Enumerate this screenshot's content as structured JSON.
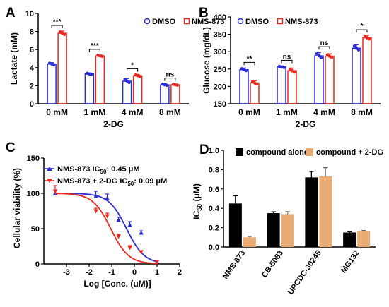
{
  "chart_data": [
    {
      "panel": "A",
      "type": "bar",
      "ylabel": "Lactate (mM)",
      "xlabel": "2-DG",
      "categories": [
        "0 mM",
        "1 mM",
        "4 mM",
        "8 mM"
      ],
      "ylim": [
        0,
        10
      ],
      "yticks": [
        0,
        2,
        4,
        6,
        8,
        10
      ],
      "series": [
        {
          "name": "DMSO",
          "color": "#2b2bd6",
          "values": [
            4.4,
            3.3,
            2.5,
            2.1
          ],
          "errors": [
            0.15,
            0.12,
            0.3,
            0.12
          ]
        },
        {
          "name": "NMS-873",
          "color": "#e8281e",
          "values": [
            7.8,
            5.3,
            3.1,
            2.1
          ],
          "errors": [
            0.25,
            0.1,
            0.15,
            0.08
          ]
        }
      ],
      "significance": [
        "***",
        "***",
        "*",
        "ns"
      ],
      "legend": "top-right"
    },
    {
      "panel": "B",
      "type": "bar",
      "ylabel": "Glucose (mg/dL)",
      "xlabel": "2-DG",
      "categories": [
        "0 mM",
        "1 mM",
        "4 mM",
        "8 mM"
      ],
      "ylim": [
        150,
        400
      ],
      "yticks": [
        150,
        200,
        250,
        300,
        350,
        400
      ],
      "series": [
        {
          "name": "DMSO",
          "color": "#2b2bd6",
          "values": [
            248,
            256,
            288,
            310
          ],
          "errors": [
            5,
            3,
            10,
            10
          ]
        },
        {
          "name": "NMS-873",
          "color": "#e8281e",
          "values": [
            210,
            245,
            287,
            340
          ],
          "errors": [
            6,
            8,
            7,
            7
          ]
        }
      ],
      "significance": [
        "**",
        "ns",
        "ns",
        "*"
      ],
      "legend": "top-left"
    },
    {
      "panel": "C",
      "type": "scatter",
      "ylabel": "Cellular viability (%)",
      "xlabel": "Log [Conc. (uM)]",
      "xlim": [
        -4,
        2
      ],
      "xticks": [
        -3,
        -2,
        -1,
        0,
        1,
        2
      ],
      "ylim": [
        0,
        150
      ],
      "yticks": [
        0,
        50,
        100,
        150
      ],
      "series": [
        {
          "name": "NMS-873",
          "ic50_prefix": "IC",
          "ic50_sub": "50",
          "ic50_value": ": 0.45 μM",
          "color": "#2b2bd6",
          "ic50_um": 0.45,
          "x": [
            -3.5,
            -1.7,
            -1.2,
            -0.7,
            -0.2,
            0.3,
            1.0
          ],
          "y": [
            100,
            96,
            93,
            62,
            55,
            44,
            3
          ],
          "errors": [
            5,
            7,
            6,
            4,
            5,
            3,
            2
          ]
        },
        {
          "name": "NMS-873 + 2-DG",
          "ic50_prefix": "IC",
          "ic50_sub": "50",
          "ic50_value": ": 0.09 μM",
          "color": "#e8281e",
          "ic50_um": 0.09,
          "x": [
            -3.5,
            -1.7,
            -1.2,
            -0.7,
            -0.2,
            0.3,
            1.0
          ],
          "y": [
            103,
            75,
            68,
            39,
            23,
            17,
            3
          ],
          "errors": [
            8,
            4,
            4,
            3,
            3,
            2,
            2
          ]
        }
      ],
      "legend": "top-left"
    },
    {
      "panel": "D",
      "type": "bar",
      "ylabel_prefix": "IC",
      "ylabel_sub": "50",
      "ylabel_suffix": " (μM)",
      "categories": [
        "NMS-873",
        "CB-5083",
        "UPCDC-30245",
        "MG132"
      ],
      "ylim": [
        0,
        1.0
      ],
      "yticks": [
        "0.0",
        "0.2",
        "0.4",
        "0.6",
        "0.8",
        "1.0"
      ],
      "series": [
        {
          "name": "compound alone",
          "color": "#000000",
          "values": [
            0.45,
            0.35,
            0.72,
            0.15
          ],
          "errors": [
            0.08,
            0.015,
            0.06,
            0.008
          ]
        },
        {
          "name": "compound + 2-DG",
          "color": "#e8ac74",
          "values": [
            0.1,
            0.34,
            0.73,
            0.16
          ],
          "errors": [
            0.01,
            0.025,
            0.09,
            0.01
          ]
        }
      ],
      "legend": "top"
    }
  ],
  "panel_letters": [
    "A",
    "B",
    "C",
    "D"
  ]
}
